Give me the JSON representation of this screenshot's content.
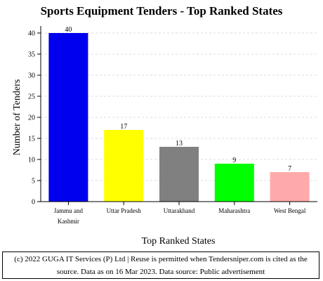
{
  "chart_data": {
    "type": "bar",
    "title": "Sports Equipment Tenders - Top Ranked States",
    "xlabel": "Top Ranked States",
    "ylabel": "Number of Tenders",
    "categories": [
      "Jammu and Kashmir",
      "Uttar Pradesh",
      "Uttarakhand",
      "Maharashtra",
      "West Bengal"
    ],
    "category_lines": [
      [
        "Jammu and",
        "Kashmir"
      ],
      [
        "Uttar Pradesh"
      ],
      [
        "Uttarakhand"
      ],
      [
        "Maharashtra"
      ],
      [
        "West Bengal"
      ]
    ],
    "values": [
      40,
      17,
      13,
      9,
      7
    ],
    "bar_colors": [
      "#0000ee",
      "#ffff00",
      "#808080",
      "#00ff00",
      "#ffaaaa"
    ],
    "ylim": [
      0,
      40
    ],
    "yticks": [
      0,
      5,
      10,
      15,
      20,
      25,
      30,
      35,
      40
    ],
    "grid": true,
    "data_labels": true
  },
  "footer": {
    "line1": "(c) 2022 GUGA IT Services (P) Ltd | Reuse is permitted when Tendersniper.com is cited as the",
    "line2": "source. Data as on 16 Mar 2023. Data source: Public advertisement"
  }
}
